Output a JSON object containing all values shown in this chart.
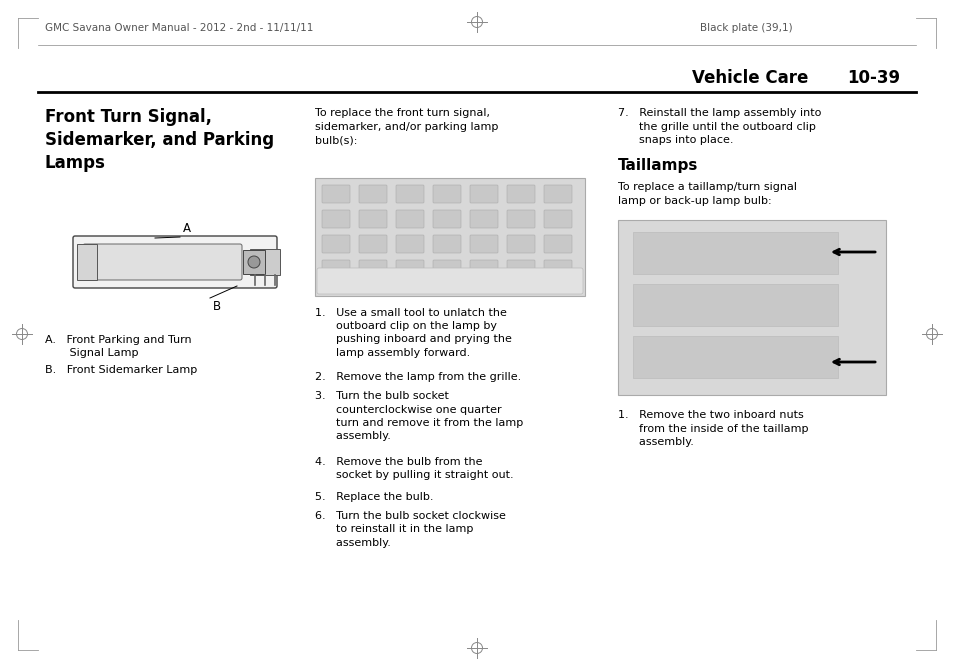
{
  "bg_color": "#ffffff",
  "header_left_text": "GMC Savana Owner Manual - 2012 - 2nd - 11/11/11",
  "header_right_text": "Black plate (39,1)",
  "section_title": "Vehicle Care",
  "page_number": "10-39",
  "main_title": "Front Turn Signal,\nSidemarker, and Parking\nLamps",
  "section2_title": "Taillamps",
  "col1_intro": "To replace the front turn signal,\nsidemarker, and/or parking lamp\nbulb(s):",
  "col2_intro": "To replace a taillamp/turn signal\nlamp or back-up lamp bulb:",
  "step1": "1.   Use a small tool to unlatch the\n      outboard clip on the lamp by\n      pushing inboard and prying the\n      lamp assembly forward.",
  "step2": "2.   Remove the lamp from the grille.",
  "step3": "3.   Turn the bulb socket\n      counterclockwise one quarter\n      turn and remove it from the lamp\n      assembly.",
  "step4": "4.   Remove the bulb from the\n      socket by pulling it straight out.",
  "step5": "5.   Replace the bulb.",
  "step6": "6.   Turn the bulb socket clockwise\n      to reinstall it in the lamp\n      assembly.",
  "step7": "7.   Reinstall the lamp assembly into\n      the grille until the outboard clip\n      snaps into place.",
  "taillamp_step": "1.   Remove the two inboard nuts\n      from the inside of the taillamp\n      assembly.",
  "label_a_text": "A.   Front Parking and Turn\n       Signal Lamp",
  "label_b_text": "B.   Front Sidemarker Lamp",
  "header_font_size": 7.5,
  "body_font_size": 8.0,
  "title_font_size": 12,
  "section_font_size": 11,
  "page_header_font_size": 12
}
